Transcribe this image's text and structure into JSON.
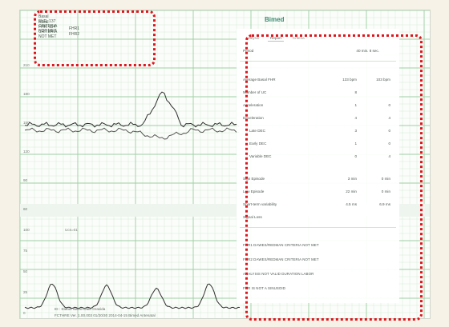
{
  "legend": {
    "line1": "Basal FHR: 137  CRITERIA NOT MET",
    "line2": "Basal FHR: 114  CRITERIA NOT MET",
    "key1": "FHR1",
    "key2": "FHR2"
  },
  "logo": "Bimed",
  "report": {
    "tabs": [
      "Analysis",
      "Report",
      "Criteria"
    ],
    "active_tab": "Report",
    "period": {
      "label": "Period",
      "value": "40 min. 8 sec."
    },
    "rows": [
      {
        "label": "Average Basal FHR",
        "v1": "133 bpm",
        "v2": "103 bpm"
      },
      {
        "label": "Number of UC",
        "v1": "8",
        "v2": ""
      },
      {
        "label": "Acceleration",
        "v1": "1",
        "v2": "0"
      },
      {
        "label": "Deceleration",
        "v1": "4",
        "v2": "4"
      },
      {
        "label": "Late DEC",
        "v1": "3",
        "v2": "0"
      },
      {
        "label": "Early DEC",
        "v1": "1",
        "v2": "0"
      },
      {
        "label": "Variable DEC",
        "v1": "0",
        "v2": "4"
      },
      {
        "label": "Sign Episode",
        "v1": "3 min",
        "v2": "0 min"
      },
      {
        "label": "Low Episode",
        "v1": "22 min",
        "v2": "0 min"
      },
      {
        "label": "Short-term variability",
        "v1": "4.5 ms",
        "v2": "6.9 ms"
      },
      {
        "label": "Signal Loss",
        "v1": "",
        "v2": ""
      }
    ],
    "criteria": [
      "FHR1 DAWES/REDMAN CRITERIA NOT MET",
      "FHR2 DAWES/REDMAN CRITERIA NOT MET",
      "ANALYSIS NOT VALID DURATION LABOR",
      "FHR IS NOT A SINUSOID"
    ]
  },
  "axis": {
    "fhr_ticks": [
      "210",
      "180",
      "150",
      "120",
      "90",
      "60"
    ],
    "toco_ticks": [
      "100",
      "75",
      "50",
      "25",
      "0"
    ],
    "toco_marker": "Ucs=01"
  },
  "footer": {
    "line1": "ID :  Status   Name     Date   Gravida",
    "line2": "FCTHRE   Ver. 1.00.003  01/20/30  2014-04-15   Bimed   Antenatal"
  },
  "colors": {
    "annotation": "#e0151c",
    "grid_major": "#9fcfa4",
    "grid_minor": "#d6ecd8",
    "trace": "#2f2f2f"
  }
}
